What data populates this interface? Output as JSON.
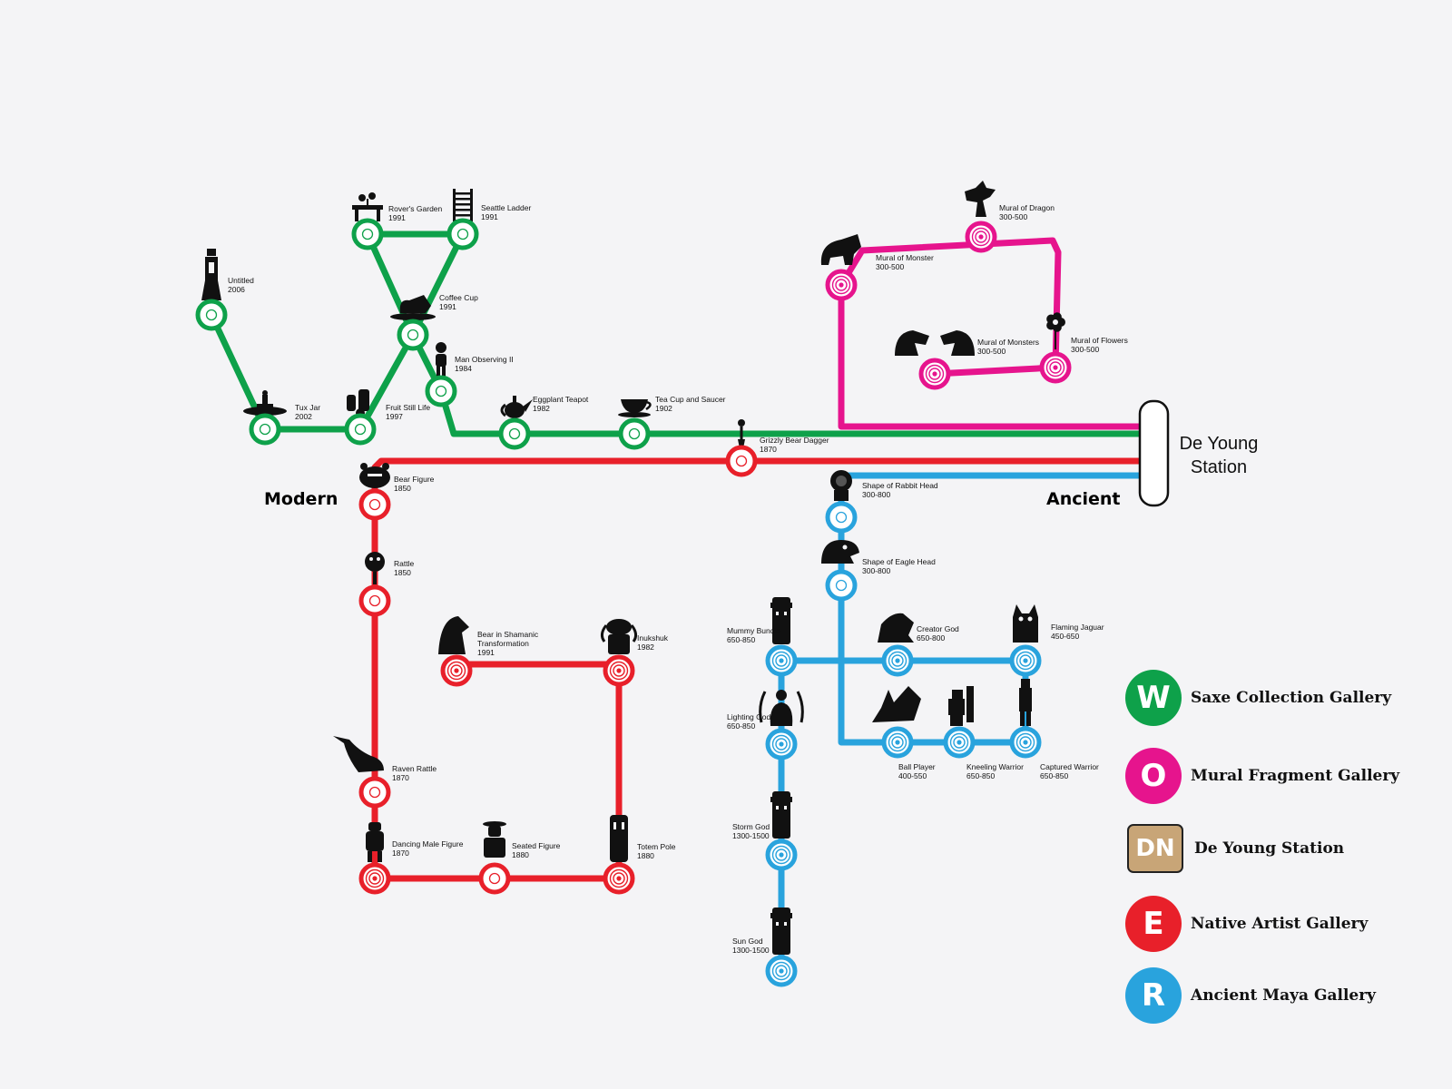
{
  "colors": {
    "green": "#0ea14a",
    "pink": "#e6148d",
    "red": "#e8202a",
    "blue": "#29a3dd",
    "station": "#c8a577"
  },
  "terminal": {
    "line1": "De Young",
    "line2": "Station"
  },
  "ends": {
    "modern": "Modern",
    "ancient": "Ancient"
  },
  "stations": [
    {
      "name": "Rover's Garden",
      "year": "1991"
    },
    {
      "name": "Seattle Ladder",
      "year": "1991"
    },
    {
      "name": "Untitled",
      "year": "2006"
    },
    {
      "name": "Coffee Cup",
      "year": "1991"
    },
    {
      "name": "Man Observing II",
      "year": "1984"
    },
    {
      "name": "Tux Jar",
      "year": "2002"
    },
    {
      "name": "Fruit Still Life",
      "year": "1997"
    },
    {
      "name": "Eggplant Teapot",
      "year": "1982"
    },
    {
      "name": "Tea Cup and Saucer",
      "year": "1902"
    },
    {
      "name": "Grizzly Bear Dagger",
      "year": "1870"
    },
    {
      "name": "Mural of Dragon",
      "year": "300-500"
    },
    {
      "name": "Mural of Monster",
      "year": "300-500"
    },
    {
      "name": "Mural of Monsters",
      "year": "300-500"
    },
    {
      "name": "Mural of Flowers",
      "year": "300-500"
    },
    {
      "name": "Bear Figure",
      "year": "1850"
    },
    {
      "name": "Rattle",
      "year": "1850"
    },
    {
      "name": "Bear in Shamanic",
      "name2": "Transformation",
      "year": "1991"
    },
    {
      "name": "Inukshuk",
      "year": "1982"
    },
    {
      "name": "Raven Rattle",
      "year": "1870"
    },
    {
      "name": "Dancing Male  Figure",
      "year": "1870"
    },
    {
      "name": "Seated Figure",
      "year": "1880"
    },
    {
      "name": "Totem Pole",
      "year": "1880"
    },
    {
      "name": "Shape of Rabbit Head",
      "year": "300-800"
    },
    {
      "name": "Shape of Eagle Head",
      "year": "300-800"
    },
    {
      "name": "Mummy Bundle",
      "year": "650-850"
    },
    {
      "name": "Creator God",
      "year": "650-800"
    },
    {
      "name": "Flaming Jaguar",
      "year": "450-650"
    },
    {
      "name": "Lighting God",
      "year": "650-850"
    },
    {
      "name": "Ball Player",
      "year": "400-550"
    },
    {
      "name": "Kneeling Warrior",
      "year": "650-850"
    },
    {
      "name": "Captured Warrior",
      "year": "650-850"
    },
    {
      "name": "Storm God",
      "year": "1300-1500"
    },
    {
      "name": "Sun God",
      "year": "1300-1500"
    }
  ],
  "legend": [
    {
      "letter": "W",
      "label": "Saxe Collection Gallery",
      "color": "#0ea14a"
    },
    {
      "letter": "O",
      "label": "Mural Fragment Gallery",
      "color": "#e6148d"
    },
    {
      "letter": "DN",
      "label": "De Young Station",
      "color": "#c8a577"
    },
    {
      "letter": "E",
      "label": "Native Artist Gallery",
      "color": "#e8202a"
    },
    {
      "letter": "R",
      "label": "Ancient Maya Gallery",
      "color": "#29a3dd"
    }
  ]
}
